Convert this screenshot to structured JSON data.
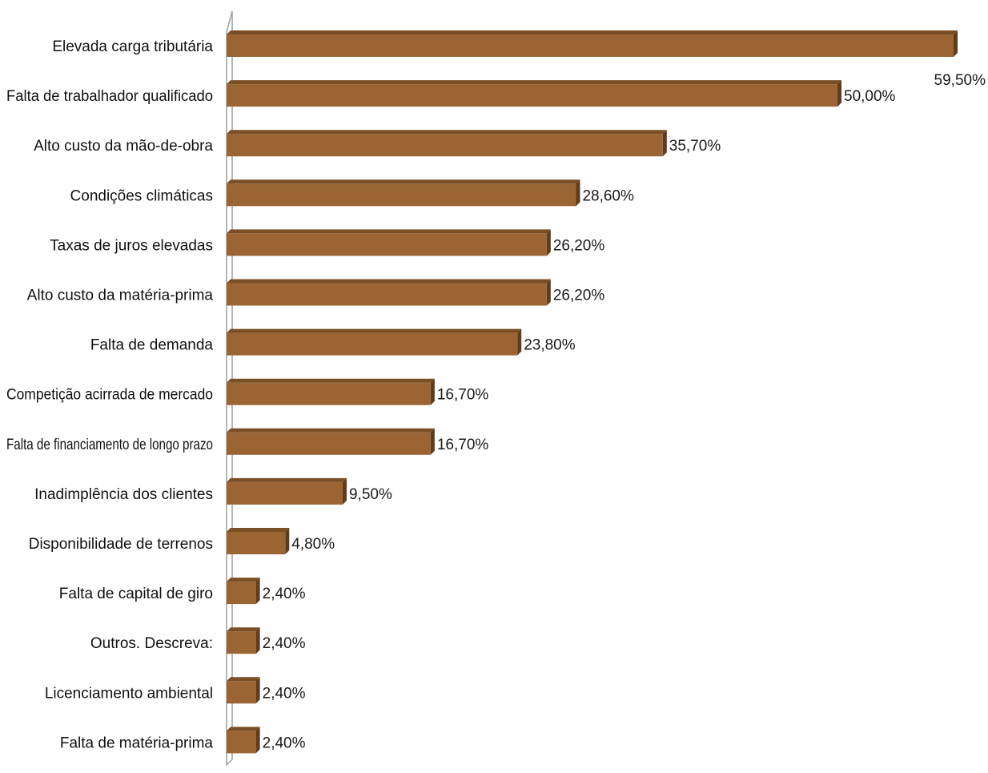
{
  "chart_data": {
    "type": "bar",
    "orientation": "horizontal",
    "style": "3d",
    "title": "",
    "xlabel": "",
    "ylabel": "",
    "xlim": [
      0,
      59.5
    ],
    "grid": false,
    "legend": "none",
    "value_suffix": "%",
    "colors": {
      "bar_front": "#9a6433",
      "bar_top": "#7a4f26",
      "bar_side": "#5e3c1c",
      "axis": "#9e9e9e"
    },
    "categories": [
      "Elevada carga tributária",
      "Falta de trabalhador qualificado",
      "Alto custo da mão-de-obra",
      "Condições climáticas",
      "Taxas de juros elevadas",
      "Alto custo da matéria-prima",
      "Falta de demanda",
      "Competição acirrada de mercado",
      "Falta de financiamento de longo prazo",
      "Inadimplência dos clientes",
      "Disponibilidade de terrenos",
      "Falta de capital de giro",
      "Outros. Descreva:",
      "Licenciamento ambiental",
      "Falta de matéria-prima"
    ],
    "values": [
      59.5,
      50.0,
      35.7,
      28.6,
      26.2,
      26.2,
      23.8,
      16.7,
      16.7,
      9.5,
      4.8,
      2.4,
      2.4,
      2.4,
      2.4
    ],
    "data_labels": [
      "59,50%",
      "50,00%",
      "35,70%",
      "28,60%",
      "26,20%",
      "26,20%",
      "23,80%",
      "16,70%",
      "16,70%",
      "9,50%",
      "4,80%",
      "2,40%",
      "2,40%",
      "2,40%",
      "2,40%"
    ]
  }
}
